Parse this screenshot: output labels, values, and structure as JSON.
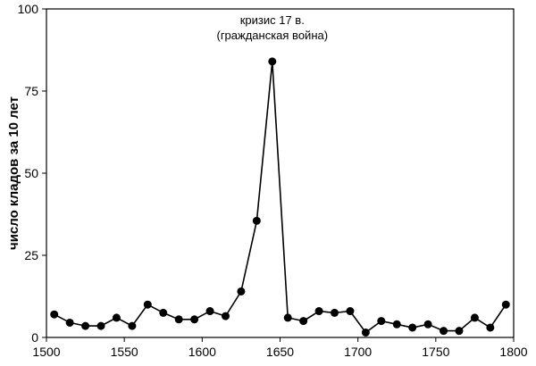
{
  "chart_data": {
    "type": "line",
    "title": "",
    "xlabel": "",
    "ylabel": "число кладов за 10 лет",
    "xlim": [
      1500,
      1800
    ],
    "ylim": [
      0,
      100
    ],
    "grid": false,
    "x_ticks": [
      1500,
      1550,
      1600,
      1650,
      1700,
      1750,
      1800
    ],
    "y_ticks": [
      0,
      25,
      50,
      75,
      100
    ],
    "series": [
      {
        "x": [
          1505,
          1515,
          1525,
          1535,
          1545,
          1555,
          1565,
          1575,
          1585,
          1595,
          1605,
          1615,
          1625,
          1635,
          1645,
          1655,
          1665,
          1675,
          1685,
          1695,
          1705,
          1715,
          1725,
          1735,
          1745,
          1755,
          1765,
          1775,
          1785,
          1795
        ],
        "y": [
          7,
          4.5,
          3.5,
          3.5,
          6,
          3.5,
          10,
          7.5,
          5.5,
          5.5,
          8,
          6.5,
          14,
          35.5,
          84,
          6,
          5,
          8,
          7.5,
          8,
          1.5,
          5,
          4,
          3,
          4,
          2,
          2,
          6,
          3,
          10
        ]
      }
    ],
    "annotations": [
      {
        "x": 1645,
        "y": 84,
        "lines": [
          "кризис 17 в.",
          "(гражданская война)"
        ]
      }
    ]
  }
}
